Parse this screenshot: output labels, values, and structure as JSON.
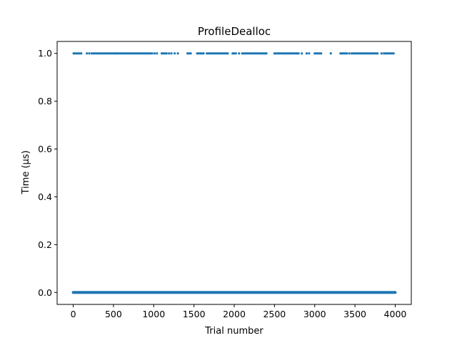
{
  "chart_data": {
    "type": "scatter",
    "title": "ProfileDealloc",
    "xlabel": "Trial number",
    "ylabel": "Time (µs)",
    "xlim": [
      -200,
      4200
    ],
    "ylim": [
      -0.05,
      1.05
    ],
    "xticks": [
      0,
      500,
      1000,
      1500,
      2000,
      2500,
      3000,
      3500,
      4000
    ],
    "yticks": [
      0.0,
      0.2,
      0.4,
      0.6,
      0.8,
      1.0
    ],
    "xtick_labels": [
      "0",
      "500",
      "1000",
      "1500",
      "2000",
      "2500",
      "3000",
      "3500",
      "4000"
    ],
    "ytick_labels": [
      "0.0",
      "0.2",
      "0.4",
      "0.6",
      "0.8",
      "1.0"
    ],
    "grid": false,
    "marker_color": "#1f77b4",
    "series": [
      {
        "values_description": "Most trials at 0.0 µs (dense band from trial 0 to 4000); sparse trials at 1.0 µs",
        "baseline": {
          "y": 0.0,
          "x_start": 0,
          "x_end": 4000
        },
        "high_points": {
          "y": 1.0,
          "x": [
            5,
            20,
            40,
            60,
            80,
            100,
            170,
            200,
            230,
            250,
            270,
            290,
            310,
            330,
            350,
            370,
            390,
            410,
            430,
            450,
            470,
            490,
            510,
            530,
            540,
            560,
            580,
            600,
            620,
            640,
            660,
            680,
            700,
            720,
            740,
            760,
            780,
            800,
            820,
            840,
            860,
            880,
            900,
            920,
            940,
            960,
            980,
            1010,
            1040,
            1100,
            1120,
            1140,
            1160,
            1190,
            1220,
            1260,
            1300,
            1420,
            1440,
            1460,
            1540,
            1560,
            1580,
            1600,
            1620,
            1660,
            1680,
            1700,
            1720,
            1740,
            1760,
            1780,
            1800,
            1820,
            1840,
            1860,
            1880,
            1900,
            1920,
            1980,
            2000,
            2020,
            2060,
            2100,
            2120,
            2140,
            2160,
            2180,
            2200,
            2220,
            2240,
            2260,
            2280,
            2300,
            2320,
            2340,
            2360,
            2380,
            2400,
            2500,
            2520,
            2540,
            2560,
            2580,
            2600,
            2620,
            2640,
            2660,
            2680,
            2700,
            2720,
            2740,
            2760,
            2780,
            2800,
            2840,
            2900,
            2930,
            3000,
            3020,
            3040,
            3060,
            3080,
            3200,
            3320,
            3340,
            3360,
            3380,
            3400,
            3430,
            3460,
            3480,
            3500,
            3520,
            3540,
            3560,
            3580,
            3600,
            3620,
            3640,
            3660,
            3680,
            3700,
            3720,
            3740,
            3760,
            3780,
            3830,
            3860,
            3880,
            3900,
            3920,
            3940,
            3960,
            3980
          ]
        }
      }
    ]
  }
}
